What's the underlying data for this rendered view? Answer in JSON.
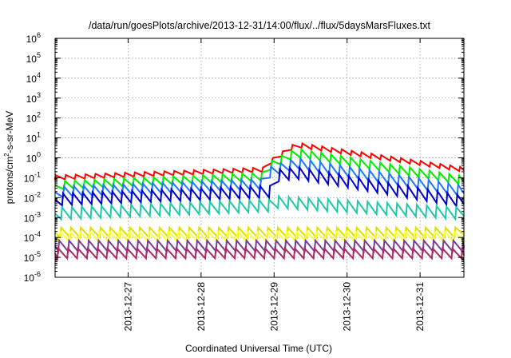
{
  "chart_data": {
    "type": "line",
    "title": "/data/run/goesPlots/archive/2013-12-31/14:00/flux/../flux/5daysMarsFluxes.txt",
    "xlabel": "Coordinated Universal Time (UTC)",
    "ylabel_main": "protons/cm",
    "ylabel_sup": "2",
    "ylabel_rest": "-s-sr-MeV",
    "y_scale": "log",
    "ylim_exponent": [
      -6,
      6
    ],
    "y_tick_labels": [
      {
        "base": "10",
        "exp": "-6"
      },
      {
        "base": "10",
        "exp": "-5"
      },
      {
        "base": "10",
        "exp": "-4"
      },
      {
        "base": "10",
        "exp": "-3"
      },
      {
        "base": "10",
        "exp": "-2"
      },
      {
        "base": "10",
        "exp": "-1"
      },
      {
        "base": "10",
        "exp": "0"
      },
      {
        "base": "10",
        "exp": "1"
      },
      {
        "base": "10",
        "exp": "2"
      },
      {
        "base": "10",
        "exp": "3"
      },
      {
        "base": "10",
        "exp": "4"
      },
      {
        "base": "10",
        "exp": "5"
      },
      {
        "base": "10",
        "exp": "6"
      }
    ],
    "x_range_days": [
      26.0,
      31.6
    ],
    "x_ticks": [
      {
        "label": "2013-12-27",
        "day": 27
      },
      {
        "label": "2013-12-28",
        "day": 28
      },
      {
        "label": "2013-12-29",
        "day": 29
      },
      {
        "label": "2013-12-30",
        "day": 30
      },
      {
        "label": "2013-12-31",
        "day": 31
      }
    ],
    "grid": true,
    "legend": "none",
    "sawtooth_period_days": 0.135,
    "step_day": 28.95,
    "series": [
      {
        "color": "#ff0000",
        "before": [
          [
            26.0,
            -1.1
          ],
          [
            28.9,
            -0.7
          ]
        ],
        "after": [
          [
            28.95,
            -0.3
          ],
          [
            29.3,
            0.55
          ],
          [
            31.6,
            -0.7
          ]
        ],
        "amp": 0.22
      },
      {
        "color": "#00ee00",
        "before": [
          [
            26.0,
            -1.6
          ],
          [
            28.9,
            -1.15
          ]
        ],
        "after": [
          [
            28.95,
            -0.6
          ],
          [
            29.3,
            0.05
          ],
          [
            31.6,
            -1.35
          ]
        ],
        "amp": 0.42
      },
      {
        "color": "#1e78ff",
        "before": [
          [
            26.0,
            -2.0
          ],
          [
            28.9,
            -1.6
          ]
        ],
        "after": [
          [
            28.95,
            -1.0
          ],
          [
            29.3,
            -0.55
          ],
          [
            31.6,
            -1.95
          ]
        ],
        "amp": 0.55
      },
      {
        "color": "#0000cc",
        "before": [
          [
            26.0,
            -2.4
          ],
          [
            28.9,
            -2.0
          ]
        ],
        "after": [
          [
            28.95,
            -1.25
          ],
          [
            29.3,
            -1.05
          ],
          [
            31.6,
            -2.5
          ]
        ],
        "amp": 0.6
      },
      {
        "color": "#20c8a8",
        "before": [
          [
            26.0,
            -3.1
          ],
          [
            28.9,
            -2.7
          ]
        ],
        "after": [
          [
            28.95,
            -2.5
          ],
          [
            31.6,
            -3.1
          ]
        ],
        "amp": 0.6
      },
      {
        "color": "#dde000",
        "before": [
          [
            26.0,
            -4.0
          ],
          [
            31.6,
            -4.0
          ]
        ],
        "after": null,
        "amp": 0.5
      },
      {
        "color": "#ffff40",
        "before": [
          [
            26.0,
            -4.2
          ],
          [
            31.6,
            -4.2
          ]
        ],
        "after": null,
        "amp": 0.5
      },
      {
        "color": "#7a3a96",
        "before": [
          [
            26.0,
            -4.7
          ],
          [
            31.6,
            -4.7
          ]
        ],
        "after": null,
        "amp": 0.55
      },
      {
        "color": "#aa2b66",
        "before": [
          [
            26.0,
            -5.05
          ],
          [
            31.6,
            -5.05
          ]
        ],
        "after": null,
        "amp": 0.5
      }
    ]
  }
}
